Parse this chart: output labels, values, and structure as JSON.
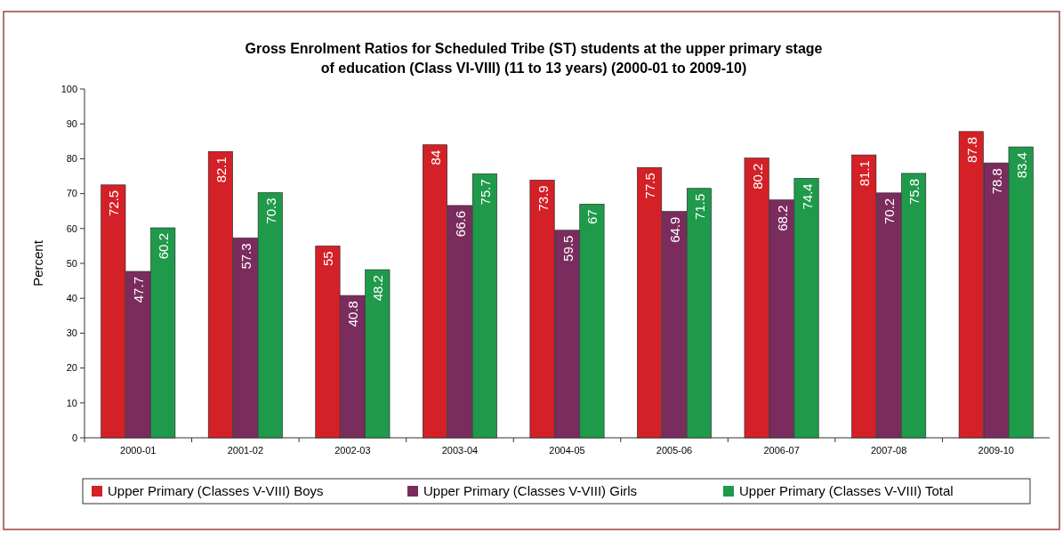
{
  "chart_data": {
    "type": "bar",
    "title": "Gross Enrolment Ratios for Scheduled Tribe (ST) students at the upper primary stage of education (Class VI-VIII) (11 to 13 years) (2000-01 to 2009-10)",
    "ylabel": "Percent",
    "categories": [
      "2000-01",
      "2001-02",
      "2002-03",
      "2003-04",
      "2004-05",
      "2005-06",
      "2006-07",
      "2007-08",
      "2009-10"
    ],
    "series": [
      {
        "name": "Upper Primary (Classes V-VIII) Boys",
        "color": "#d42027",
        "values": [
          72.5,
          82.1,
          55,
          84,
          73.9,
          77.5,
          80.2,
          81.1,
          87.8
        ]
      },
      {
        "name": "Upper Primary (Classes V-VIII) Girls",
        "color": "#7b2c5e",
        "values": [
          47.7,
          57.3,
          40.8,
          66.6,
          59.5,
          64.9,
          68.2,
          70.2,
          78.8
        ]
      },
      {
        "name": "Upper Primary (Classes V-VIII) Total",
        "color": "#1f9a4a",
        "values": [
          60.2,
          70.3,
          48.2,
          75.7,
          67,
          71.5,
          74.4,
          75.8,
          83.4
        ]
      }
    ],
    "ylim": [
      0,
      100
    ],
    "yticks": [
      0,
      10,
      20,
      30,
      40,
      50,
      60,
      70,
      80,
      90,
      100
    ],
    "grid": false,
    "legend": "bottom",
    "data_labels": true
  }
}
